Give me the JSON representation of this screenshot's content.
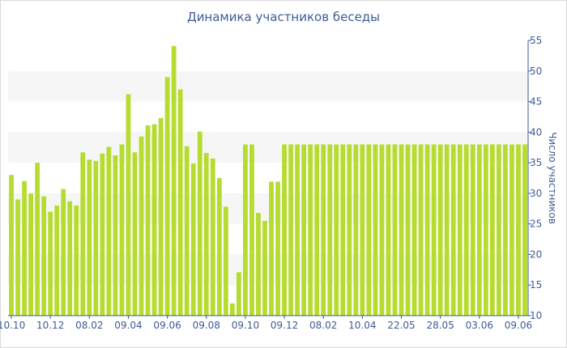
{
  "chart_data": {
    "type": "bar",
    "title": "Динамика участников беседы",
    "ylabel": "Число участников",
    "xlabel": "",
    "ylim": [
      10,
      55
    ],
    "y_ticks": [
      10,
      15,
      20,
      25,
      30,
      35,
      40,
      45,
      50,
      55
    ],
    "x_tick_labels": [
      "10.10",
      "10.12",
      "08.02",
      "09.04",
      "09.06",
      "09.08",
      "09.10",
      "09.12",
      "08.02",
      "10.04",
      "22.05",
      "28.05",
      "03.06",
      "09.06"
    ],
    "x_tick_indices": [
      0,
      6,
      12,
      18,
      24,
      30,
      36,
      42,
      48,
      54,
      60,
      66,
      72,
      78
    ],
    "y_axis_position": "right",
    "grid": "alternating horizontal bands",
    "bar_color": "#b5dc2f",
    "values": [
      33,
      29,
      32,
      30,
      35,
      29.5,
      27,
      28,
      30.7,
      28.7,
      28,
      36.7,
      35.5,
      35.3,
      36.5,
      37.6,
      36.2,
      38,
      46.2,
      36.7,
      39.3,
      41.1,
      41.3,
      42.3,
      49,
      54.1,
      47,
      37.7,
      34.9,
      40.1,
      36.6,
      35.7,
      32.5,
      27.8,
      12,
      17.1,
      38,
      38,
      26.8,
      25.5,
      31.9,
      31.9,
      38,
      38,
      38,
      38,
      38,
      38,
      38,
      38,
      38,
      38,
      38,
      38,
      38,
      38,
      38,
      38,
      38,
      38,
      38,
      38,
      38,
      38,
      38,
      38,
      38,
      38,
      38,
      38,
      38,
      38,
      38,
      38,
      38,
      38,
      38,
      38,
      38,
      38
    ]
  }
}
